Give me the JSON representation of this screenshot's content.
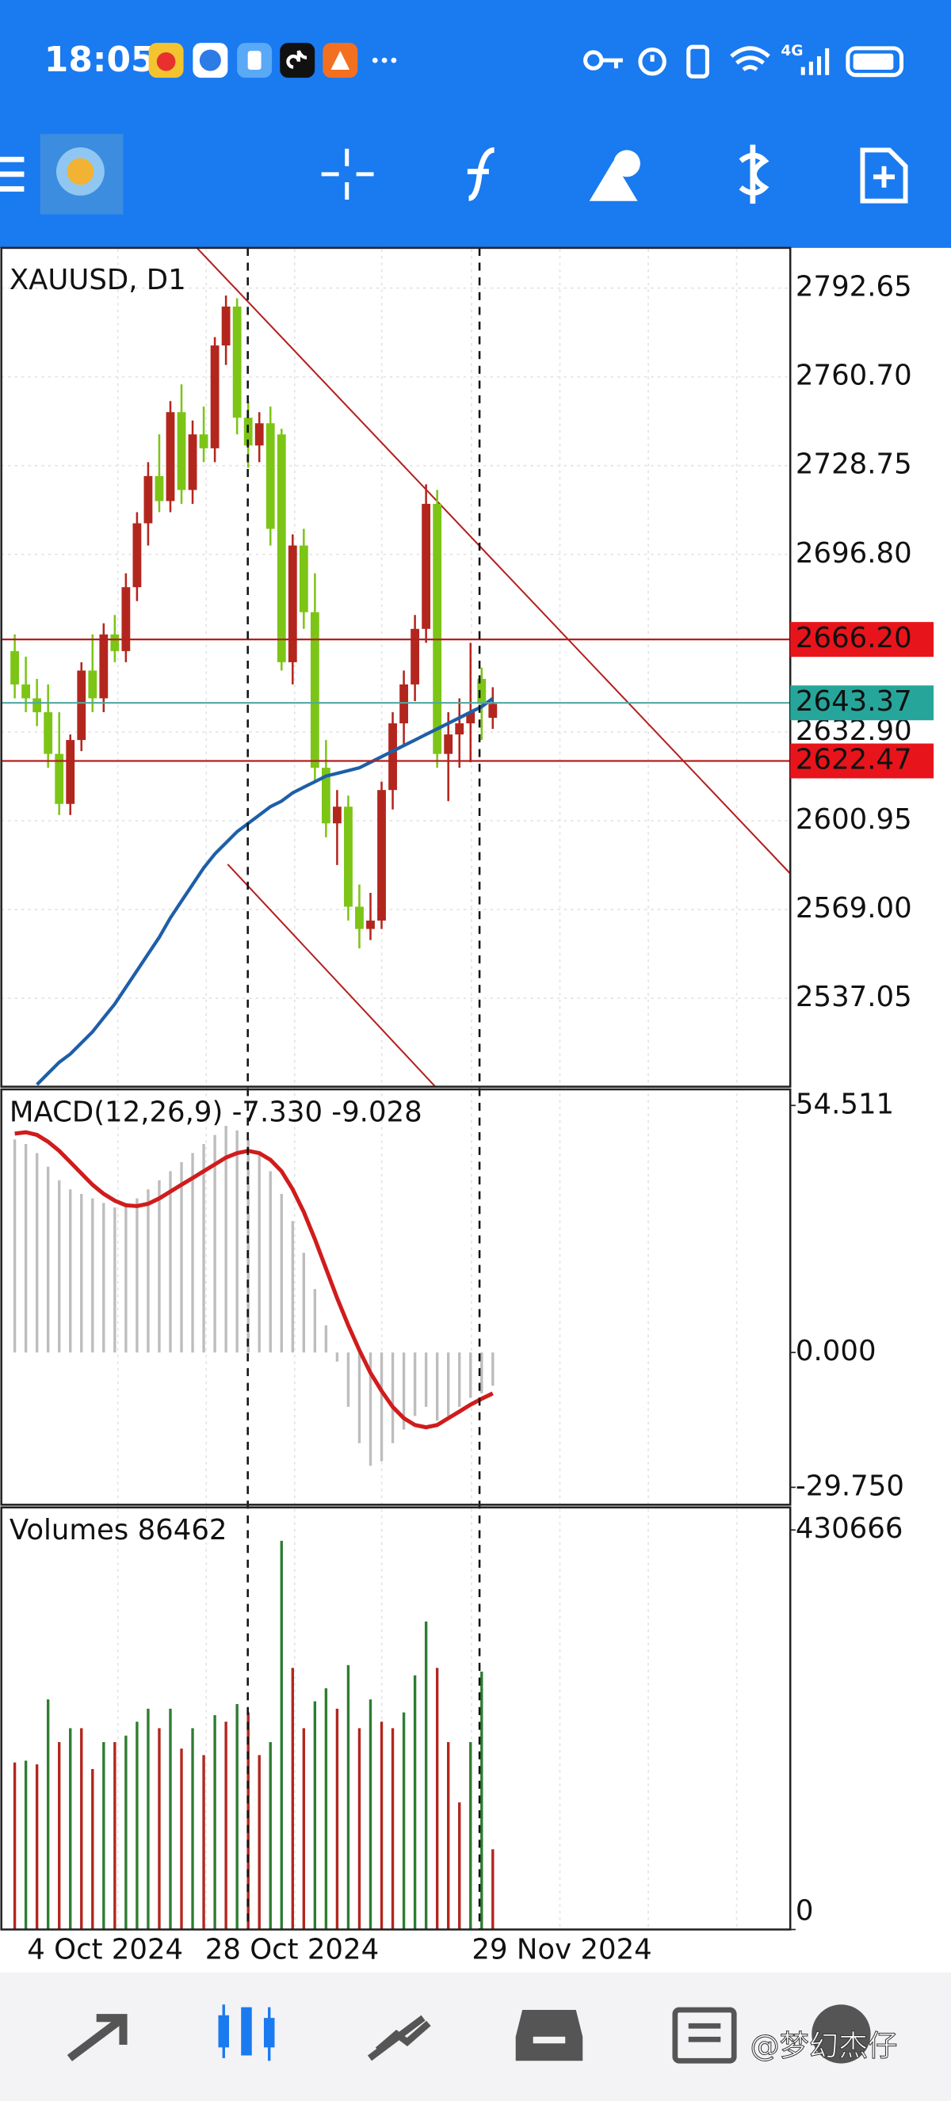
{
  "status_bar": {
    "time": "18:05",
    "network": "4G"
  },
  "watermark": "@梦幻杰仔",
  "chart_data": [
    {
      "type": "candlestick",
      "title": "XAUUSD, D1",
      "categories": [
        null,
        "4 Oct 2024",
        null,
        null,
        null,
        null,
        null,
        null,
        null,
        null,
        null,
        null,
        null,
        null,
        null,
        null,
        null,
        "28 Oct 2024",
        null,
        null,
        null,
        null,
        null,
        null,
        null,
        null,
        null,
        null,
        null,
        null,
        null,
        null,
        null,
        null,
        null,
        null,
        null,
        null,
        null,
        null,
        null,
        "29 Nov 2024",
        null,
        null
      ],
      "open": [
        2662,
        2650,
        2645,
        2640,
        2625,
        2607,
        2630,
        2655,
        2645,
        2668,
        2662,
        2685,
        2708,
        2725,
        2716,
        2748,
        2720,
        2740,
        2735,
        2772,
        2786,
        2746,
        2736,
        2744,
        2740,
        2658,
        2700,
        2676,
        2620,
        2600,
        2606,
        2570,
        2562,
        2565,
        2612,
        2636,
        2650,
        2670,
        2715,
        2625,
        2632,
        2636,
        2652,
        2638
      ],
      "high": [
        2668,
        2660,
        2652,
        2650,
        2640,
        2632,
        2658,
        2668,
        2672,
        2675,
        2690,
        2712,
        2730,
        2740,
        2752,
        2758,
        2745,
        2750,
        2775,
        2790,
        2789,
        2752,
        2748,
        2750,
        2742,
        2704,
        2706,
        2690,
        2630,
        2612,
        2610,
        2578,
        2575,
        2615,
        2640,
        2655,
        2675,
        2722,
        2720,
        2640,
        2645,
        2665,
        2656,
        2649
      ],
      "low": [
        2645,
        2640,
        2635,
        2620,
        2603,
        2603,
        2626,
        2640,
        2640,
        2658,
        2658,
        2680,
        2700,
        2712,
        2712,
        2715,
        2715,
        2730,
        2730,
        2765,
        2740,
        2728,
        2730,
        2700,
        2655,
        2650,
        2670,
        2615,
        2595,
        2585,
        2565,
        2555,
        2558,
        2562,
        2605,
        2628,
        2644,
        2665,
        2620,
        2608,
        2620,
        2622,
        2630,
        2634
      ],
      "close": [
        2650,
        2645,
        2640,
        2625,
        2607,
        2630,
        2655,
        2645,
        2668,
        2662,
        2685,
        2708,
        2725,
        2716,
        2748,
        2720,
        2740,
        2735,
        2772,
        2786,
        2746,
        2736,
        2744,
        2706,
        2658,
        2700,
        2676,
        2620,
        2600,
        2606,
        2570,
        2562,
        2565,
        2612,
        2636,
        2650,
        2670,
        2715,
        2625,
        2632,
        2636,
        2640,
        2643,
        2643
      ],
      "up_color": "#b3261e",
      "down_color": "#7cc516",
      "moving_average": {
        "color": "#1d5fa8",
        "values": [
          null,
          null,
          2506,
          2510,
          2514,
          2517,
          2521,
          2525,
          2530,
          2535,
          2541,
          2547,
          2553,
          2559,
          2566,
          2572,
          2578,
          2584,
          2589,
          2593,
          2597,
          2600,
          2603,
          2606,
          2608,
          2611,
          2613,
          2615,
          2617,
          2618,
          2619,
          2620,
          2622,
          2624,
          2626,
          2628,
          2630,
          2632,
          2634,
          2636,
          2638,
          2640,
          2642,
          2645
        ]
      },
      "price_lines": [
        {
          "value": 2666.2,
          "label": "2666.20",
          "color": "#e8141b",
          "line_color": "#b32020"
        },
        {
          "value": 2643.37,
          "color": "#26a69a",
          "line_color": "#4fa8a0"
        },
        {
          "value": 2622.47,
          "color": "#e8141b",
          "line_color": "#b32020"
        }
      ],
      "ylim": [
        2505.23,
        2807.12
      ],
      "yticks": [
        2792.65,
        {
          "value": 2760.7,
          "label": "2760.70"
        },
        2728.75,
        {
          "value": 2696.8,
          "label": "2696.80"
        },
        {
          "value": 2632.9,
          "label": "2632.90"
        },
        2600.95,
        {
          "value": 2569,
          "label": "2569.00"
        },
        2537.05
      ],
      "grid": true
    },
    {
      "type": "macd",
      "title": "MACD(12,26,9) -7.330 -9.028",
      "histogram": {
        "color": "#bdbdbd",
        "values": [
          47,
          46,
          44,
          41,
          38,
          36,
          35,
          34,
          33,
          32,
          33,
          34,
          36,
          38,
          40,
          42,
          44,
          46,
          48,
          50,
          49,
          47,
          44,
          40,
          35,
          29,
          22,
          14,
          6,
          -2,
          -12,
          -20,
          -25,
          -24,
          -20,
          -17,
          -14,
          -12,
          -15,
          -14,
          -12,
          -10,
          -9,
          -7.33
        ]
      },
      "signal": {
        "color": "#d01c1c",
        "values": [
          48.3,
          48.6,
          48,
          46.5,
          44.5,
          42,
          39.5,
          37,
          35,
          33.5,
          32.5,
          32.3,
          32.8,
          34,
          35.5,
          37,
          38.5,
          40,
          41.5,
          43,
          44,
          44.5,
          44,
          42.5,
          40,
          36,
          31,
          25,
          18.5,
          12,
          6,
          0.5,
          -4.5,
          -8.5,
          -12,
          -14.5,
          -16,
          -16.5,
          -16,
          -14.5,
          -13,
          -11.5,
          -10.2,
          -9.028
        ]
      },
      "ylim": [
        -33.59,
        58.06
      ],
      "yticks": [
        54.511,
        {
          "value": 0,
          "label": "0.000"
        },
        {
          "value": -29.75,
          "label": "-29.750"
        }
      ]
    },
    {
      "type": "volume",
      "title": "Volumes 86462",
      "values": [
        180000,
        182000,
        178000,
        248000,
        202000,
        217000,
        217000,
        173000,
        202000,
        202000,
        209000,
        224000,
        238000,
        217000,
        238000,
        195000,
        217000,
        188000,
        231000,
        224000,
        243000,
        234000,
        188000,
        202000,
        419000,
        282000,
        217000,
        246000,
        260000,
        238000,
        285000,
        217000,
        248000,
        224000,
        217000,
        234000,
        274000,
        332000,
        282000,
        202000,
        137000,
        202000,
        278000,
        86462
      ],
      "up_color": "#2e7d32",
      "down_color": "#b3261e",
      "ylim": [
        0,
        455000
      ],
      "yticks": [
        430666,
        0
      ]
    }
  ]
}
